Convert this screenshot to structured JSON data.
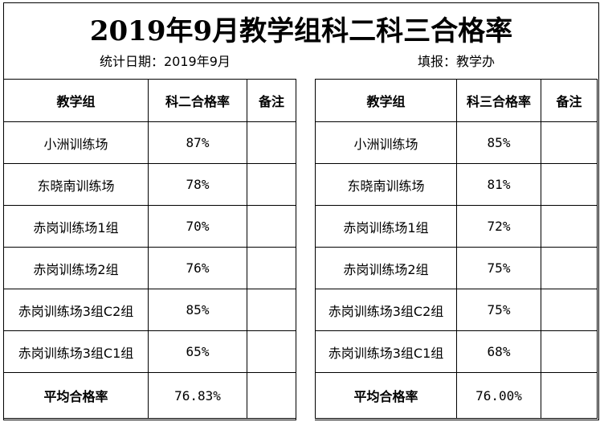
{
  "title": "2019年9月教学组科二科三合格率",
  "stat_date": "统计日期：2019年9月",
  "filler": "填报：教学办",
  "left_table": {
    "headers": [
      "教学组",
      "科二合格率",
      "备注"
    ],
    "rows": [
      {
        "group": "小洲训练场",
        "rate": "87%",
        "note": ""
      },
      {
        "group": "东晓南训练场",
        "rate": "78%",
        "note": ""
      },
      {
        "group": "赤岗训练场1组",
        "rate": "70%",
        "note": ""
      },
      {
        "group": "赤岗训练场2组",
        "rate": "76%",
        "note": ""
      },
      {
        "group": "赤岗训练场3组C2组",
        "rate": "85%",
        "note": ""
      },
      {
        "group": "赤岗训练场3组C1组",
        "rate": "65%",
        "note": ""
      }
    ],
    "average_label": "平均合格率",
    "average_value": "76.83%"
  },
  "right_table": {
    "headers": [
      "教学组",
      "科三合格率",
      "备注"
    ],
    "rows": [
      {
        "group": "小洲训练场",
        "rate": "85%",
        "note": ""
      },
      {
        "group": "东晓南训练场",
        "rate": "81%",
        "note": ""
      },
      {
        "group": "赤岗训练场1组",
        "rate": "72%",
        "note": ""
      },
      {
        "group": "赤岗训练场2组",
        "rate": "75%",
        "note": ""
      },
      {
        "group": "赤岗训练场3组C2组",
        "rate": "75%",
        "note": ""
      },
      {
        "group": "赤岗训练场3组C1组",
        "rate": "68%",
        "note": ""
      }
    ],
    "average_label": "平均合格率",
    "average_value": "76.00%"
  }
}
